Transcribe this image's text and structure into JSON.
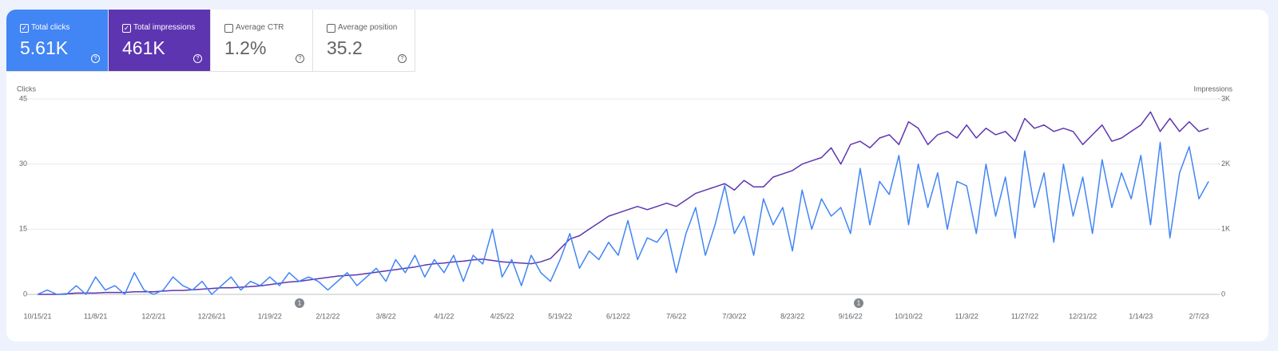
{
  "cards": [
    {
      "label": "Total clicks",
      "value": "5.61K",
      "checked": true,
      "color": "#4285f4"
    },
    {
      "label": "Total impressions",
      "value": "461K",
      "checked": true,
      "color": "#5e35b1"
    },
    {
      "label": "Average CTR",
      "value": "1.2%",
      "checked": false,
      "color": "#ffffff"
    },
    {
      "label": "Average position",
      "value": "35.2",
      "checked": false,
      "color": "#ffffff"
    }
  ],
  "chart_data": {
    "type": "line",
    "y_label": "Clicks",
    "y2_label": "Impressions",
    "categories": [
      "10/15/21",
      null,
      null,
      null,
      null,
      null,
      "11/8/21",
      null,
      null,
      null,
      null,
      null,
      "12/2/21",
      null,
      null,
      null,
      null,
      null,
      "12/26/21",
      null,
      null,
      null,
      null,
      null,
      "1/19/22",
      null,
      null,
      null,
      null,
      null,
      "2/12/22",
      null,
      null,
      null,
      null,
      null,
      "3/8/22",
      null,
      null,
      null,
      null,
      null,
      "4/1/22",
      null,
      null,
      null,
      null,
      null,
      "4/25/22",
      null,
      null,
      null,
      null,
      null,
      "5/19/22",
      null,
      null,
      null,
      null,
      null,
      "6/12/22",
      null,
      null,
      null,
      null,
      null,
      "7/6/22",
      null,
      null,
      null,
      null,
      null,
      "7/30/22",
      null,
      null,
      null,
      null,
      null,
      "8/23/22",
      null,
      null,
      null,
      null,
      null,
      "9/16/22",
      null,
      null,
      null,
      null,
      null,
      "10/10/22",
      null,
      null,
      null,
      null,
      null,
      "11/3/22",
      null,
      null,
      null,
      null,
      null,
      "11/27/22",
      null,
      null,
      null,
      null,
      null,
      "12/21/22",
      null,
      null,
      null,
      null,
      null,
      "1/14/23",
      null,
      null,
      null,
      null,
      null,
      "2/7/23",
      null
    ],
    "series": [
      {
        "name": "Clicks",
        "color": "#4285f4",
        "values": [
          0,
          1,
          0,
          0,
          2,
          0,
          4,
          1,
          2,
          0,
          5,
          1,
          0,
          1,
          4,
          2,
          1,
          3,
          0,
          2,
          4,
          1,
          3,
          2,
          4,
          2,
          5,
          3,
          4,
          3,
          1,
          3,
          5,
          2,
          4,
          6,
          3,
          8,
          5,
          9,
          4,
          8,
          5,
          9,
          3,
          9,
          7,
          15,
          4,
          8,
          2,
          9,
          5,
          3,
          8,
          14,
          6,
          10,
          8,
          12,
          9,
          17,
          8,
          13,
          12,
          15,
          5,
          14,
          20,
          9,
          16,
          25,
          14,
          18,
          9,
          22,
          16,
          20,
          10,
          24,
          15,
          22,
          18,
          20,
          14,
          29,
          16,
          26,
          23,
          32,
          16,
          30,
          20,
          28,
          15,
          26,
          25,
          14,
          30,
          18,
          27,
          13,
          33,
          20,
          28,
          12,
          30,
          18,
          27,
          14,
          31,
          20,
          28,
          22,
          32,
          16,
          35,
          13,
          28,
          34,
          22,
          26
        ]
      },
      {
        "name": "Impressions",
        "color": "#5e35b1",
        "axis": "y2",
        "values": [
          0,
          0,
          0,
          10,
          20,
          20,
          20,
          30,
          30,
          30,
          40,
          40,
          40,
          50,
          60,
          60,
          70,
          80,
          90,
          100,
          100,
          110,
          120,
          130,
          150,
          170,
          190,
          200,
          220,
          240,
          260,
          280,
          290,
          300,
          320,
          340,
          360,
          380,
          400,
          420,
          450,
          470,
          480,
          500,
          510,
          530,
          540,
          520,
          500,
          490,
          480,
          470,
          500,
          550,
          700,
          850,
          900,
          1000,
          1100,
          1200,
          1250,
          1300,
          1350,
          1300,
          1350,
          1400,
          1350,
          1450,
          1550,
          1600,
          1650,
          1700,
          1600,
          1750,
          1650,
          1650,
          1800,
          1850,
          1900,
          2000,
          2050,
          2100,
          2250,
          2000,
          2300,
          2350,
          2250,
          2400,
          2450,
          2300,
          2650,
          2550,
          2300,
          2450,
          2500,
          2400,
          2600,
          2400,
          2550,
          2450,
          2500,
          2350,
          2700,
          2550,
          2600,
          2500,
          2550,
          2500,
          2300,
          2450,
          2600,
          2350,
          2400,
          2500,
          2600,
          2800,
          2500,
          2700,
          2500,
          2650,
          2500,
          2550
        ]
      }
    ],
    "ylim": [
      0,
      45
    ],
    "yticks": [
      0,
      15,
      30,
      45
    ],
    "y2lim": [
      0,
      3000
    ],
    "y2ticks": [
      0,
      {
        "value": 1000,
        "label": "1K"
      },
      {
        "value": 2000,
        "label": "2K"
      },
      {
        "value": 3000,
        "label": "3K"
      }
    ],
    "grid": true,
    "annotations": [
      "1",
      "1"
    ]
  }
}
